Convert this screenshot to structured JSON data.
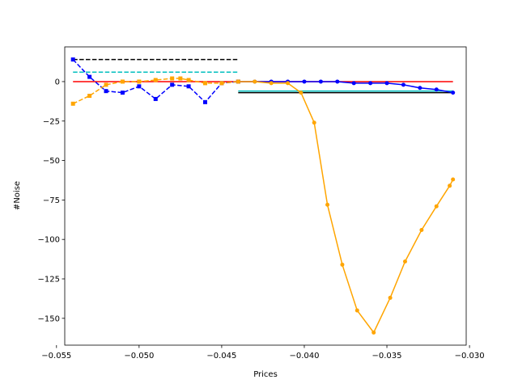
{
  "chart_data": {
    "type": "line",
    "title": "",
    "xlabel": "Prices",
    "ylabel": "#Noise",
    "xlim": [
      -0.0545,
      -0.0302
    ],
    "ylim": [
      -167,
      22
    ],
    "xticks": [
      -0.055,
      -0.05,
      -0.045,
      -0.04,
      -0.035,
      -0.03
    ],
    "xtick_labels": [
      "−0.055",
      "−0.050",
      "−0.045",
      "−0.040",
      "−0.035",
      "−0.030"
    ],
    "yticks": [
      0,
      -25,
      -50,
      -75,
      -100,
      -125,
      -150
    ],
    "ytick_labels": [
      "0",
      "−25",
      "−50",
      "−75",
      "−100",
      "−125",
      "−150"
    ],
    "grid": false,
    "series": [
      {
        "color": "#0000ff",
        "style": "dashed",
        "marker": "square",
        "x": [
          -0.054,
          -0.053,
          -0.052,
          -0.051,
          -0.05,
          -0.049,
          -0.048,
          -0.047,
          -0.046,
          -0.045,
          -0.044
        ],
        "y": [
          14,
          3,
          -6,
          -7,
          -3,
          -11,
          -2,
          -3,
          -13,
          -1,
          0
        ]
      },
      {
        "color": "#ffa500",
        "style": "dashed",
        "marker": "square",
        "x": [
          -0.054,
          -0.053,
          -0.052,
          -0.051,
          -0.05,
          -0.049,
          -0.048,
          -0.0475,
          -0.047,
          -0.046,
          -0.045,
          -0.044
        ],
        "y": [
          -14,
          -9,
          -2,
          0,
          0,
          1,
          2,
          2,
          1,
          -1,
          -1,
          0
        ]
      },
      {
        "color": "#0000ff",
        "style": "solid",
        "marker": "circle",
        "x": [
          -0.044,
          -0.043,
          -0.042,
          -0.041,
          -0.04,
          -0.039,
          -0.038,
          -0.037,
          -0.036,
          -0.035,
          -0.034,
          -0.033,
          -0.032,
          -0.031
        ],
        "y": [
          0,
          0,
          0,
          0,
          0,
          0,
          0,
          -1,
          -1,
          -1,
          -2,
          -4,
          -5,
          -7
        ]
      },
      {
        "color": "#ffa500",
        "style": "solid",
        "marker": "circle",
        "x": [
          -0.044,
          -0.043,
          -0.042,
          -0.041,
          -0.0402,
          -0.0394,
          -0.0386,
          -0.0377,
          -0.0368,
          -0.0358,
          -0.0348,
          -0.0339,
          -0.0329,
          -0.032,
          -0.0312,
          -0.031
        ],
        "y": [
          0,
          0,
          -1,
          -1,
          -7,
          -26,
          -78,
          -116,
          -145,
          -159,
          -137,
          -114,
          -94,
          -79,
          -66,
          -62
        ]
      }
    ],
    "hlines": [
      {
        "color": "#000000",
        "style": "dashed",
        "y": 14,
        "x0": -0.054,
        "x1": -0.044
      },
      {
        "color": "#00bfbf",
        "style": "dashed",
        "y": 6,
        "x0": -0.054,
        "x1": -0.044
      },
      {
        "color": "#ff0000",
        "style": "solid",
        "y": 0,
        "x0": -0.054,
        "x1": -0.031
      },
      {
        "color": "#00bfbf",
        "style": "solid",
        "y": -6,
        "x0": -0.044,
        "x1": -0.031
      },
      {
        "color": "#000000",
        "style": "solid",
        "y": -7,
        "x0": -0.044,
        "x1": -0.031
      }
    ]
  }
}
